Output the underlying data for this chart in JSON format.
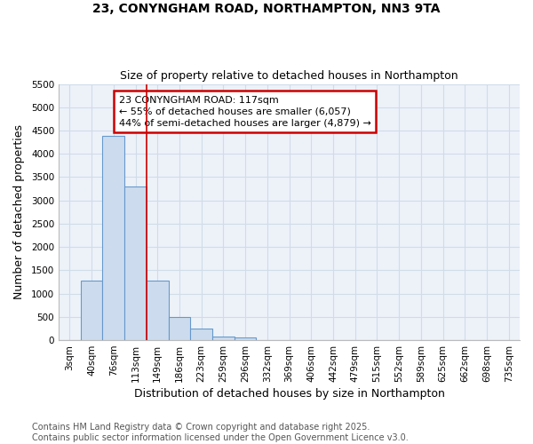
{
  "title_line1": "23, CONYNGHAM ROAD, NORTHAMPTON, NN3 9TA",
  "title_line2": "Size of property relative to detached houses in Northampton",
  "xlabel": "Distribution of detached houses by size in Northampton",
  "ylabel": "Number of detached properties",
  "categories": [
    "3sqm",
    "40sqm",
    "76sqm",
    "113sqm",
    "149sqm",
    "186sqm",
    "223sqm",
    "259sqm",
    "296sqm",
    "332sqm",
    "369sqm",
    "406sqm",
    "442sqm",
    "479sqm",
    "515sqm",
    "552sqm",
    "589sqm",
    "625sqm",
    "662sqm",
    "698sqm",
    "735sqm"
  ],
  "values": [
    0,
    1270,
    4380,
    3300,
    1280,
    500,
    240,
    80,
    50,
    0,
    0,
    0,
    0,
    0,
    0,
    0,
    0,
    0,
    0,
    0,
    0
  ],
  "bar_color": "#ccdcee",
  "bar_edge_color": "#6699cc",
  "grid_color": "#d0dce8",
  "background_color": "#edf2f9",
  "annotation_text": "23 CONYNGHAM ROAD: 117sqm\n← 55% of detached houses are smaller (6,057)\n44% of semi-detached houses are larger (4,879) →",
  "vline_color": "#cc0000",
  "annotation_box_edgecolor": "#cc0000",
  "ylim_max": 5500,
  "yticks": [
    0,
    500,
    1000,
    1500,
    2000,
    2500,
    3000,
    3500,
    4000,
    4500,
    5000,
    5500
  ],
  "vline_x": 3.5,
  "footnote_line1": "Contains HM Land Registry data © Crown copyright and database right 2025.",
  "footnote_line2": "Contains public sector information licensed under the Open Government Licence v3.0.",
  "title_fontsize": 10,
  "subtitle_fontsize": 9,
  "axis_label_fontsize": 9,
  "tick_fontsize": 7.5,
  "annotation_fontsize": 8,
  "footnote_fontsize": 7
}
